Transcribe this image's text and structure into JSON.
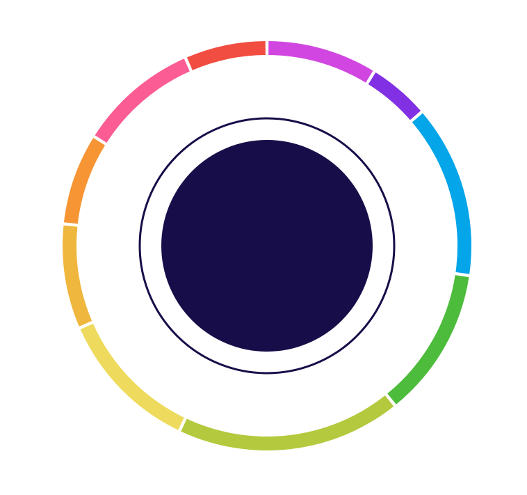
{
  "chart_data": {
    "type": "pie",
    "title": "",
    "segments": [
      {
        "value": 8.5,
        "color": "#D146E0"
      },
      {
        "value": 4.7,
        "color": "#8230E3"
      },
      {
        "value": 13.2,
        "color": "#05A5E9"
      },
      {
        "value": 11.5,
        "color": "#4DBB3B"
      },
      {
        "value": 17.2,
        "color": "#B4C93D"
      },
      {
        "value": 11.0,
        "color": "#EEDB5D"
      },
      {
        "value": 8.0,
        "color": "#F0B73E"
      },
      {
        "value": 7.0,
        "color": "#F79534"
      },
      {
        "value": 9.2,
        "color": "#FB5C93"
      },
      {
        "value": 6.3,
        "color": "#F14D41"
      }
    ],
    "center_color": "#170E49",
    "center_ring_color": "#170E49"
  }
}
